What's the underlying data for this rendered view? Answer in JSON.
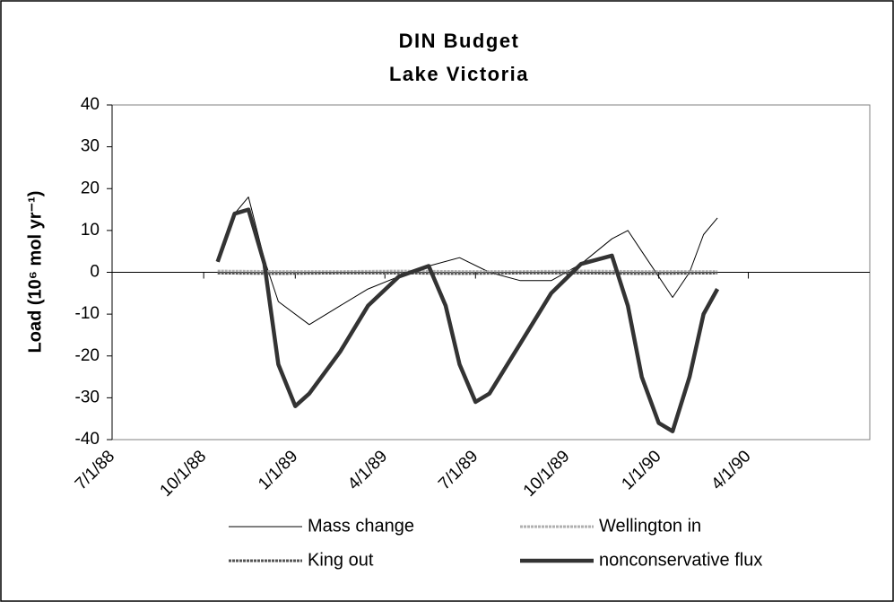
{
  "chart_data": {
    "type": "line",
    "title": [
      "DIN Budget",
      "Lake Victoria"
    ],
    "y_label": "Load (10⁶ mol yr⁻¹)",
    "xlim": [
      "7/1/88",
      "8/1/90"
    ],
    "xticks": [
      "7/1/88",
      "10/1/88",
      "1/1/89",
      "4/1/89",
      "7/1/89",
      "10/1/89",
      "1/1/90",
      "4/1/90"
    ],
    "ylim": [
      -40,
      40
    ],
    "yticks": [
      -40,
      -30,
      -20,
      -10,
      0,
      10,
      20,
      30,
      40
    ],
    "grid": false,
    "legend": "bottom",
    "series": [
      {
        "name": "Mass change",
        "color": "#000000",
        "width": 1,
        "dash": "none",
        "x": [
          "10/15/88",
          "11/1/88",
          "11/15/88",
          "12/1/88",
          "12/15/88",
          "1/15/89",
          "2/15/89",
          "3/15/89",
          "4/15/89",
          "5/15/89",
          "6/15/89",
          "7/15/89",
          "8/15/89",
          "9/15/89",
          "10/15/89",
          "11/15/89",
          "12/1/89",
          "12/15/89",
          "1/15/90",
          "2/1/90",
          "2/15/90",
          "3/1/90"
        ],
        "values": [
          2.5,
          14,
          18,
          3,
          -7,
          -12.5,
          -8,
          -4,
          -1,
          1.5,
          3.5,
          0,
          -2,
          -2,
          2,
          8,
          10,
          5,
          -6,
          0,
          9,
          13
        ]
      },
      {
        "name": "Wellington in",
        "color": "#b0b0b0",
        "width": 3,
        "dash": "3 1",
        "x": [
          "10/15/88",
          "12/15/88",
          "2/15/89",
          "4/15/89",
          "6/15/89",
          "8/15/89",
          "10/15/89",
          "12/15/89",
          "3/1/90"
        ],
        "values": [
          0.3,
          0.2,
          0.2,
          0.3,
          0.2,
          0.2,
          0.3,
          0.2,
          0.2
        ]
      },
      {
        "name": "King out",
        "color": "#555555",
        "width": 3,
        "dash": "3 1",
        "x": [
          "10/15/88",
          "12/15/88",
          "2/15/89",
          "4/15/89",
          "6/15/89",
          "8/15/89",
          "10/15/89",
          "12/15/89",
          "3/1/90"
        ],
        "values": [
          -0.2,
          -0.3,
          -0.2,
          -0.2,
          -0.3,
          -0.2,
          -0.2,
          -0.3,
          -0.2
        ]
      },
      {
        "name": "nonconservative flux",
        "color": "#333333",
        "width": 4.5,
        "dash": "none",
        "x": [
          "10/15/88",
          "11/1/88",
          "11/15/88",
          "12/1/88",
          "12/15/88",
          "1/1/89",
          "1/15/89",
          "2/15/89",
          "3/15/89",
          "4/15/89",
          "5/15/89",
          "6/1/89",
          "6/15/89",
          "7/1/89",
          "7/15/89",
          "8/15/89",
          "9/15/89",
          "10/15/89",
          "11/15/89",
          "12/1/89",
          "12/15/89",
          "1/1/90",
          "1/15/90",
          "2/1/90",
          "2/15/90",
          "3/1/90"
        ],
        "values": [
          2.5,
          14,
          15,
          2,
          -22,
          -32,
          -29,
          -19,
          -8,
          -1,
          1.5,
          -8,
          -22,
          -31,
          -29,
          -17,
          -5,
          2,
          4,
          -8,
          -25,
          -36,
          -38,
          -25,
          -10,
          -4
        ]
      }
    ]
  }
}
